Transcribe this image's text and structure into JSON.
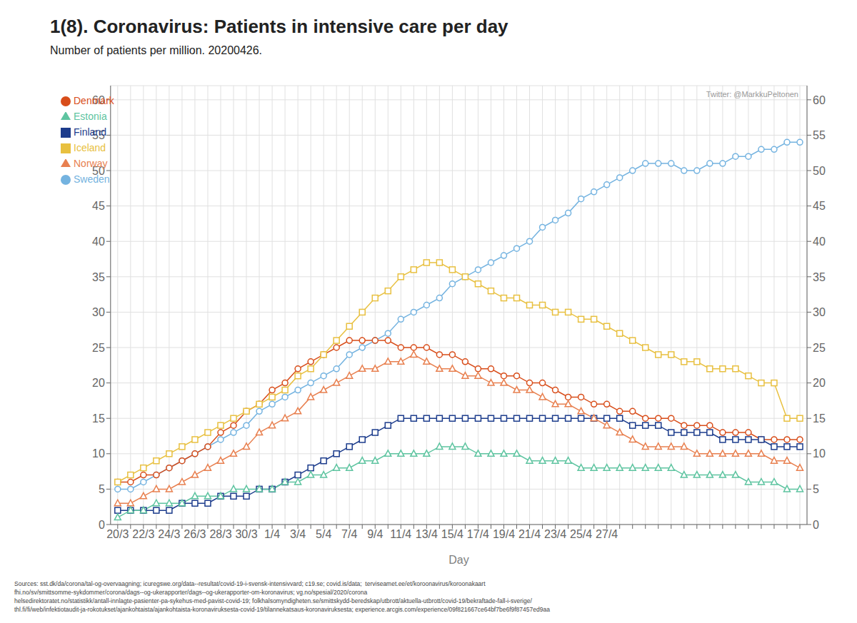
{
  "chart_data": {
    "type": "line",
    "title": "1(8). Coronavirus: Patients in intensive care per day",
    "subtitle": "Number of patients per million. 20200426.",
    "annotations": [
      "Twitter: @MarkkuPeltonen"
    ],
    "footnote": "Sources: sst.dk/da/corona/tal-og-overvaagning; icuregswe.org/data--resultat/covid-19-i-svensk-intensivvard; c19.se; covid.is/data;  terviseamet.ee/et/koroonavirus/koroonakaart\nfhi.no/sv/smittsomme-sykdommer/corona/dags--og-ukerapporter/dags--og-ukerapporter-om-koronavirus; vg.no/spesial/2020/corona\nhelsedirektoratet.no/statistikk/antall-innlagte-pasienter-pa-sykehus-med-pavist-covid-19; folkhalsomyndigheten.se/smittskydd-beredskap/utbrott/aktuella-utbrott/covid-19/bekraftade-fall-i-sverige/\nthl.fi/fi/web/infektiotaudit-ja-rokotukset/ajankohtaista/ajankohtaista-koronaviruksesta-covid-19/tilannekatsaus-koronaviruksesta; experience.arcgis.com/experience/09f821667ce64bf7be6f9f87457ed9aa",
    "xlabel": "Day",
    "categories": [
      "20/3",
      null,
      "22/3",
      null,
      "24/3",
      null,
      "26/3",
      null,
      "28/3",
      null,
      "30/3",
      null,
      "1/4",
      null,
      "3/4",
      null,
      "5/4",
      null,
      "7/4",
      null,
      "9/4",
      null,
      "11/4",
      null,
      "13/4",
      null,
      "15/4",
      null,
      "17/4",
      null,
      "19/4",
      null,
      "21/4",
      null,
      "23/4",
      null,
      "25/4",
      null,
      "27/4",
      null,
      null,
      null,
      null,
      null,
      null,
      null,
      null,
      null,
      null,
      null,
      null,
      null,
      null,
      null
    ],
    "ylim": [
      0,
      62
    ],
    "yticks": [
      0,
      5,
      10,
      15,
      20,
      25,
      30,
      35,
      40,
      45,
      50,
      55,
      60
    ],
    "y2lim": [
      0,
      62
    ],
    "y2ticks": [
      0,
      5,
      10,
      15,
      20,
      25,
      30,
      35,
      40,
      45,
      50,
      55,
      60
    ],
    "grid": true,
    "legend": "upper left",
    "series": [
      {
        "name": "Sweden",
        "color": "#74b3e0",
        "marker": "circle",
        "values": [
          5,
          5,
          6,
          7,
          8,
          9,
          10,
          11,
          12,
          13,
          14,
          16,
          17,
          18,
          19,
          20,
          21,
          22,
          24,
          25,
          26,
          27,
          29,
          30,
          31,
          32,
          34,
          35,
          36,
          37,
          38,
          39,
          40,
          42,
          43,
          44,
          46,
          47,
          48,
          49,
          50,
          51,
          51,
          51,
          50,
          50,
          51,
          51,
          52,
          52,
          53,
          53,
          54,
          54
        ]
      },
      {
        "name": "Denmark",
        "color": "#d84d1a",
        "marker": "circle",
        "values": [
          6,
          6,
          7,
          7,
          8,
          9,
          10,
          11,
          13,
          14,
          16,
          17,
          19,
          20,
          22,
          23,
          24,
          25,
          26,
          26,
          26,
          26,
          25,
          25,
          25,
          24,
          24,
          23,
          22,
          22,
          21,
          21,
          20,
          20,
          19,
          18,
          18,
          17,
          17,
          16,
          16,
          15,
          15,
          15,
          14,
          14,
          14,
          13,
          13,
          13,
          12,
          12,
          12,
          12
        ]
      },
      {
        "name": "Finland",
        "color": "#1c3c8c",
        "marker": "square",
        "values": [
          2,
          2,
          2,
          2,
          2,
          3,
          3,
          3,
          4,
          4,
          4,
          5,
          5,
          6,
          7,
          8,
          9,
          10,
          11,
          12,
          13,
          14,
          15,
          15,
          15,
          15,
          15,
          15,
          15,
          15,
          15,
          15,
          15,
          15,
          15,
          15,
          15,
          15,
          15,
          15,
          14,
          14,
          14,
          13,
          13,
          13,
          13,
          12,
          12,
          12,
          12,
          11,
          11,
          11
        ]
      },
      {
        "name": "Norway",
        "color": "#e88050",
        "marker": "triangle",
        "values": [
          3,
          3,
          4,
          5,
          5,
          6,
          7,
          8,
          9,
          10,
          11,
          13,
          14,
          15,
          16,
          18,
          19,
          20,
          21,
          22,
          22,
          23,
          23,
          24,
          23,
          22,
          22,
          21,
          21,
          20,
          20,
          19,
          19,
          18,
          17,
          17,
          16,
          15,
          14,
          13,
          12,
          11,
          11,
          11,
          11,
          10,
          10,
          10,
          10,
          10,
          10,
          9,
          9,
          8
        ]
      },
      {
        "name": "Iceland",
        "color": "#e8c040",
        "marker": "square",
        "values": [
          6,
          7,
          8,
          9,
          10,
          11,
          12,
          13,
          14,
          15,
          16,
          17,
          18,
          19,
          21,
          22,
          24,
          26,
          28,
          30,
          32,
          33,
          35,
          36,
          37,
          37,
          36,
          35,
          34,
          33,
          32,
          32,
          31,
          31,
          30,
          30,
          29,
          29,
          28,
          27,
          26,
          25,
          24,
          24,
          23,
          23,
          22,
          22,
          22,
          21,
          20,
          20,
          15,
          15
        ]
      },
      {
        "name": "Estonia",
        "color": "#5ec4a0",
        "marker": "triangle",
        "values": [
          1,
          2,
          2,
          3,
          3,
          3,
          4,
          4,
          4,
          5,
          5,
          5,
          5,
          6,
          6,
          7,
          7,
          8,
          8,
          9,
          9,
          10,
          10,
          10,
          10,
          11,
          11,
          11,
          10,
          10,
          10,
          10,
          9,
          9,
          9,
          9,
          8,
          8,
          8,
          8,
          8,
          8,
          8,
          8,
          7,
          7,
          7,
          7,
          7,
          6,
          6,
          6,
          5,
          5
        ]
      }
    ]
  }
}
